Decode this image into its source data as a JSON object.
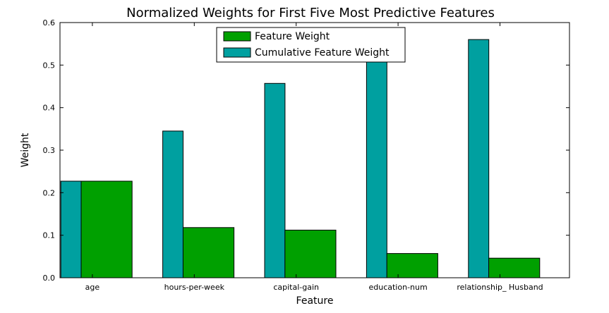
{
  "chart_data": {
    "type": "bar",
    "title": "Normalized Weights for First Five Most Predictive Features",
    "xlabel": "Feature",
    "ylabel": "Weight",
    "ylim": [
      0,
      0.6
    ],
    "yticks": [
      "0.0",
      "0.1",
      "0.2",
      "0.3",
      "0.4",
      "0.5",
      "0.6"
    ],
    "categories": [
      "age",
      "hours-per-week",
      "capital-gain",
      "education-num",
      "relationship_ Husband"
    ],
    "series": [
      {
        "name": "Feature Weight",
        "color": "#00a000",
        "values": [
          0.227,
          0.118,
          0.112,
          0.057,
          0.046
        ]
      },
      {
        "name": "Cumulative Feature Weight",
        "color": "#00a0a0",
        "values": [
          0.227,
          0.345,
          0.457,
          0.514,
          0.56
        ]
      }
    ],
    "legend_placement": "top-center",
    "grid": false
  }
}
